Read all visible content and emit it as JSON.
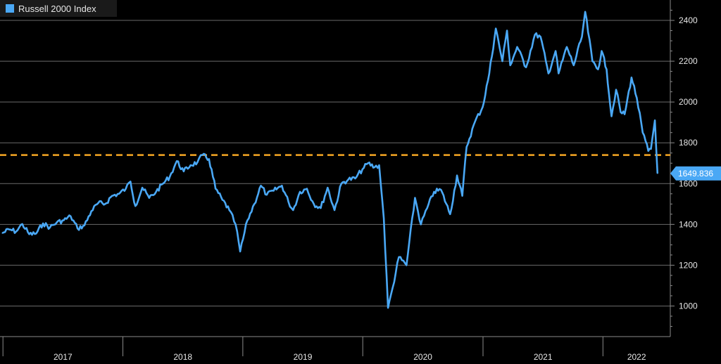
{
  "chart_data": {
    "type": "line",
    "title": "",
    "xlabel": "",
    "ylabel": "",
    "ylim": [
      850,
      2500
    ],
    "grid": true,
    "legend_placement": "top-left",
    "y_ticks": [
      1000,
      1200,
      1400,
      1600,
      1800,
      2000,
      2200,
      2400
    ],
    "x_tick_labels": [
      "2017",
      "2018",
      "2019",
      "2020",
      "2021",
      "2022"
    ],
    "reference_line": {
      "value": 1740,
      "color": "#f5a623",
      "style": "dashed"
    },
    "last_value_label": "1649.836",
    "colors": {
      "series": "#4aa8f5",
      "background": "#000000",
      "grid": "#6a6a6a",
      "axis": "#8a8a8a"
    },
    "series": [
      {
        "name": "Russell 2000 Index",
        "points": [
          [
            "2016-12-30",
            1357
          ],
          [
            "2017-01-20",
            1375
          ],
          [
            "2017-02-10",
            1365
          ],
          [
            "2017-03-01",
            1402
          ],
          [
            "2017-03-22",
            1352
          ],
          [
            "2017-04-12",
            1355
          ],
          [
            "2017-05-03",
            1405
          ],
          [
            "2017-05-24",
            1385
          ],
          [
            "2017-06-14",
            1410
          ],
          [
            "2017-07-05",
            1420
          ],
          [
            "2017-07-26",
            1440
          ],
          [
            "2017-08-16",
            1380
          ],
          [
            "2017-09-06",
            1395
          ],
          [
            "2017-09-27",
            1465
          ],
          [
            "2017-10-18",
            1505
          ],
          [
            "2017-11-08",
            1500
          ],
          [
            "2017-11-29",
            1540
          ],
          [
            "2017-12-20",
            1550
          ],
          [
            "2018-01-10",
            1575
          ],
          [
            "2018-01-24",
            1610
          ],
          [
            "2018-02-08",
            1490
          ],
          [
            "2018-03-01",
            1580
          ],
          [
            "2018-03-22",
            1530
          ],
          [
            "2018-04-12",
            1560
          ],
          [
            "2018-05-03",
            1600
          ],
          [
            "2018-05-24",
            1635
          ],
          [
            "2018-06-14",
            1710
          ],
          [
            "2018-07-05",
            1660
          ],
          [
            "2018-07-26",
            1690
          ],
          [
            "2018-08-16",
            1705
          ],
          [
            "2018-08-31",
            1740
          ],
          [
            "2018-09-20",
            1720
          ],
          [
            "2018-10-10",
            1575
          ],
          [
            "2018-10-31",
            1520
          ],
          [
            "2018-11-21",
            1470
          ],
          [
            "2018-12-10",
            1400
          ],
          [
            "2018-12-24",
            1267
          ],
          [
            "2019-01-15",
            1420
          ],
          [
            "2019-02-05",
            1500
          ],
          [
            "2019-02-25",
            1590
          ],
          [
            "2019-03-15",
            1545
          ],
          [
            "2019-04-05",
            1565
          ],
          [
            "2019-04-30",
            1590
          ],
          [
            "2019-05-20",
            1510
          ],
          [
            "2019-06-03",
            1470
          ],
          [
            "2019-06-24",
            1560
          ],
          [
            "2019-07-15",
            1575
          ],
          [
            "2019-08-05",
            1500
          ],
          [
            "2019-08-26",
            1480
          ],
          [
            "2019-09-16",
            1580
          ],
          [
            "2019-10-07",
            1470
          ],
          [
            "2019-10-28",
            1600
          ],
          [
            "2019-11-18",
            1620
          ],
          [
            "2019-12-09",
            1625
          ],
          [
            "2019-12-31",
            1670
          ],
          [
            "2020-01-17",
            1700
          ],
          [
            "2020-02-06",
            1680
          ],
          [
            "2020-02-20",
            1690
          ],
          [
            "2020-03-05",
            1430
          ],
          [
            "2020-03-18",
            991
          ],
          [
            "2020-04-01",
            1090
          ],
          [
            "2020-04-20",
            1240
          ],
          [
            "2020-05-13",
            1200
          ],
          [
            "2020-06-08",
            1530
          ],
          [
            "2020-06-26",
            1400
          ],
          [
            "2020-07-15",
            1480
          ],
          [
            "2020-08-05",
            1560
          ],
          [
            "2020-08-26",
            1570
          ],
          [
            "2020-09-23",
            1450
          ],
          [
            "2020-10-14",
            1640
          ],
          [
            "2020-10-30",
            1540
          ],
          [
            "2020-11-12",
            1780
          ],
          [
            "2020-12-08",
            1905
          ],
          [
            "2020-12-31",
            1975
          ],
          [
            "2021-01-20",
            2140
          ],
          [
            "2021-02-09",
            2360
          ],
          [
            "2021-03-01",
            2200
          ],
          [
            "2021-03-15",
            2350
          ],
          [
            "2021-03-25",
            2180
          ],
          [
            "2021-04-15",
            2270
          ],
          [
            "2021-05-12",
            2170
          ],
          [
            "2021-06-08",
            2330
          ],
          [
            "2021-06-25",
            2320
          ],
          [
            "2021-07-19",
            2140
          ],
          [
            "2021-08-10",
            2250
          ],
          [
            "2021-08-19",
            2140
          ],
          [
            "2021-09-13",
            2270
          ],
          [
            "2021-10-04",
            2180
          ],
          [
            "2021-10-29",
            2320
          ],
          [
            "2021-11-08",
            2442
          ],
          [
            "2021-11-30",
            2200
          ],
          [
            "2021-12-17",
            2160
          ],
          [
            "2021-12-28",
            2250
          ],
          [
            "2022-01-12",
            2160
          ],
          [
            "2022-01-27",
            1930
          ],
          [
            "2022-02-10",
            2060
          ],
          [
            "2022-02-24",
            1950
          ],
          [
            "2022-03-08",
            1940
          ],
          [
            "2022-03-29",
            2120
          ],
          [
            "2022-04-14",
            2020
          ],
          [
            "2022-05-02",
            1850
          ],
          [
            "2022-05-19",
            1760
          ],
          [
            "2022-05-27",
            1770
          ],
          [
            "2022-06-08",
            1910
          ],
          [
            "2022-06-16",
            1650
          ]
        ]
      }
    ]
  }
}
